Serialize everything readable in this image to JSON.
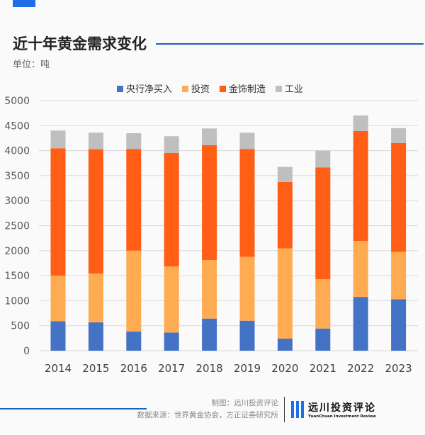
{
  "header": {
    "title": "近十年黄金需求变化",
    "unit": "单位：吨"
  },
  "footer": {
    "maker": "制图：远川投资评论",
    "source": "数据来源：世界黄金协会，方正证券研究所",
    "logo_cn": "远川投资评论",
    "logo_en": "YuanChuan Investment Review"
  },
  "chart_data": {
    "type": "bar",
    "stacked": true,
    "categories": [
      "2014",
      "2015",
      "2016",
      "2017",
      "2018",
      "2019",
      "2020",
      "2021",
      "2022",
      "2023"
    ],
    "series": [
      {
        "name": "央行净买入",
        "color": "#4472c4",
        "values": [
          590,
          566,
          382,
          363,
          642,
          599,
          241,
          443,
          1075,
          1028
        ]
      },
      {
        "name": "投资",
        "color": "#ffab52",
        "values": [
          910,
          976,
          1618,
          1321,
          1169,
          1278,
          1806,
          986,
          1118,
          948
        ]
      },
      {
        "name": "金饰制造",
        "color": "#ff5e14",
        "values": [
          2547,
          2486,
          2033,
          2269,
          2297,
          2156,
          1326,
          2236,
          2199,
          2175
        ]
      },
      {
        "name": "工业",
        "color": "#bfbfbf",
        "values": [
          354,
          330,
          316,
          335,
          335,
          325,
          302,
          335,
          311,
          297
        ]
      }
    ],
    "ylim": [
      0,
      5000
    ],
    "yticks": [
      "0",
      "500",
      "1000",
      "1500",
      "2000",
      "2500",
      "3000",
      "3500",
      "4000",
      "4500",
      "5000"
    ],
    "grid": true,
    "legend": "top"
  }
}
